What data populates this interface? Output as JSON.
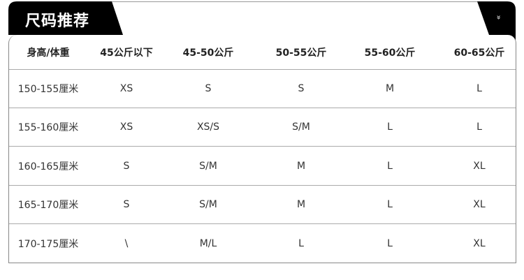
{
  "header": {
    "title": "尺码推荐",
    "toggle_icon": "double-chevron-down-icon",
    "toggle_symbol": "»"
  },
  "table": {
    "columns": [
      "身高/体重",
      "45公斤以下",
      "45-50公斤",
      "50-55公斤",
      "55-60公斤",
      "60-65公斤"
    ],
    "rows": [
      [
        "150-155厘米",
        "XS",
        "S",
        "S",
        "M",
        "L"
      ],
      [
        "155-160厘米",
        "XS",
        "XS/S",
        "S/M",
        "L",
        "L"
      ],
      [
        "160-165厘米",
        "S",
        "S/M",
        "M",
        "L",
        "XL"
      ],
      [
        "165-170厘米",
        "S",
        "S/M",
        "M",
        "L",
        "XL"
      ],
      [
        "170-175厘米",
        "\\",
        "M/L",
        "L",
        "L",
        "XL"
      ]
    ]
  },
  "colors": {
    "header_bg": "#000000",
    "text": "#333333",
    "border": "#aaaaaa"
  }
}
